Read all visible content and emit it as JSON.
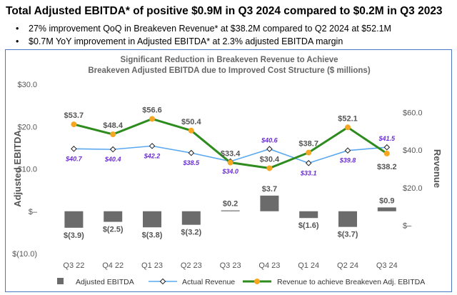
{
  "header": {
    "headline": "Total Adjusted EBITDA* of positive $0.9M in Q3 2024 compared to $0.2M in Q3 2023",
    "bullets": [
      "27% improvement QoQ in Breakeven Revenue* at $38.2M compared to Q2 2024 at $52.1M",
      "$0.7M YoY improvement in Adjusted EBITDA* at 2.3% adjusted EBITDA margin"
    ]
  },
  "colors": {
    "border": "#4a78c2",
    "bar": "#6b6b6b",
    "revenue_line": "#5aa8f0",
    "breakeven_line": "#2e8b1e",
    "breakeven_marker": "#f5a623",
    "revenue_label": "#6a2bd6"
  },
  "chart_data": {
    "type": "bar+line",
    "title": [
      "Significant Reduction in Breakeven Revenue to Achieve",
      "Breakeven Adjusted EBITDA due to Improved Cost Structure ($ millions)"
    ],
    "categories": [
      "Q3 22",
      "Q4 22",
      "Q1 23",
      "Q2 23",
      "Q3 23",
      "Q4 23",
      "Q1 24",
      "Q2 24",
      "Q3 24"
    ],
    "y_left": {
      "label": "Adjusted EBITDA",
      "range": [
        -10,
        30
      ],
      "ticks": [
        30,
        20,
        10,
        0,
        -10
      ],
      "tick_labels": [
        "$30.0",
        "$20.0",
        "$10.0",
        "$–",
        "$(10.0)"
      ]
    },
    "y_right": {
      "label": "Revenue",
      "range": [
        -15,
        75
      ],
      "ticks": [
        60,
        40,
        20,
        0
      ],
      "tick_labels": [
        "$60.0",
        "$40.0",
        "$20.0",
        "$–"
      ]
    },
    "series": [
      {
        "name": "Adjusted EBITDA",
        "type": "bar",
        "axis": "left",
        "values": [
          -3.9,
          -2.5,
          -3.8,
          -3.2,
          0.2,
          3.7,
          -1.6,
          -3.7,
          0.9
        ],
        "labels": [
          "$(3.9)",
          "$(2.5)",
          "$(3.8)",
          "$(3.2)",
          "$0.2",
          "$3.7",
          "$(1.6)",
          "$(3.7)",
          "$0.9"
        ]
      },
      {
        "name": "Actual Revenue",
        "type": "line",
        "axis": "right",
        "values": [
          40.7,
          40.4,
          42.2,
          38.5,
          34.0,
          40.6,
          33.1,
          39.8,
          41.5
        ],
        "labels": [
          "$40.7",
          "$40.4",
          "$42.2",
          "$38.5",
          "$34.0",
          "$40.6",
          "$33.1",
          "$39.8",
          "$41.5"
        ]
      },
      {
        "name": "Revenue to achieve Breakeven Adj. EBITDA",
        "type": "line",
        "axis": "right",
        "values": [
          53.7,
          48.4,
          56.6,
          50.4,
          33.4,
          30.4,
          38.7,
          52.1,
          38.2
        ],
        "labels": [
          "$53.7",
          "$48.4",
          "$56.6",
          "$50.4",
          "$33.4",
          "$30.4",
          "$38.7",
          "$52.1",
          "$38.2"
        ]
      }
    ],
    "legend_position": "bottom"
  }
}
